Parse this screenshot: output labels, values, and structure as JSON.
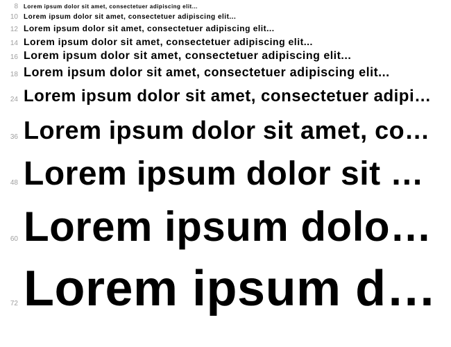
{
  "waterfall": {
    "text": "Lorem ipsum dolor sit amet, consectetuer adipiscing elit...",
    "label_color": "#9e9e9e",
    "text_color": "#000000",
    "background_color": "#ffffff",
    "font_weight": 900,
    "sizes": [
      8,
      10,
      12,
      14,
      16,
      18,
      24,
      36,
      48,
      60,
      72
    ]
  }
}
